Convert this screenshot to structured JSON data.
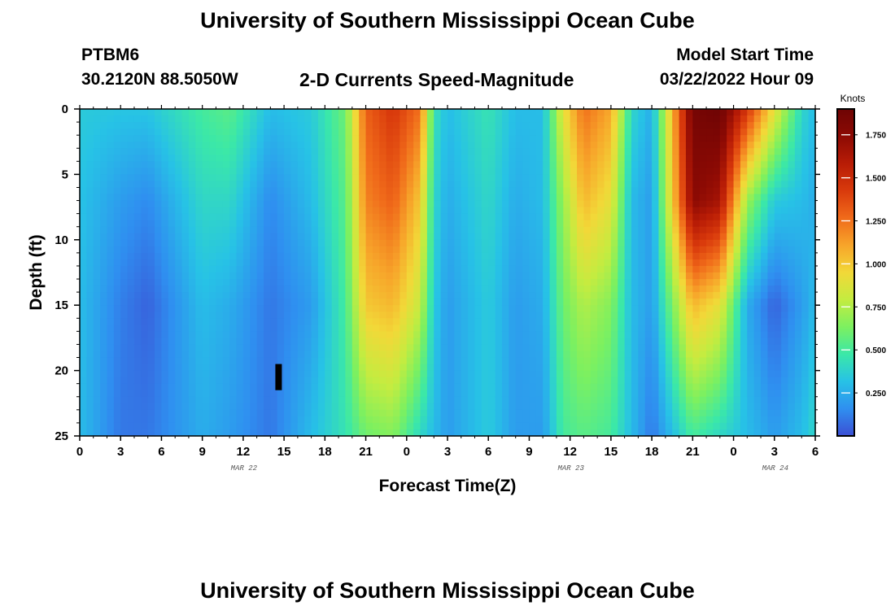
{
  "header": {
    "title": "University of Southern Mississippi Ocean Cube",
    "station": "PTBM6",
    "coords": "30.2120N  88.5050W",
    "subtitle": "2-D Currents Speed-Magnitude",
    "model_start_label": "Model Start Time",
    "model_start_value": "03/22/2022 Hour 09"
  },
  "footer": {
    "title": "University of Southern Mississippi Ocean Cube"
  },
  "chart_data": {
    "type": "heatmap",
    "title": "2-D Currents Speed-Magnitude",
    "xlabel": "Forecast Time(Z)",
    "ylabel": "Depth (ft)",
    "x_tick_labels": [
      "0",
      "3",
      "6",
      "9",
      "12",
      "15",
      "18",
      "21",
      "0",
      "3",
      "6",
      "9",
      "12",
      "15",
      "18",
      "21",
      "0",
      "3",
      "6"
    ],
    "date_labels": [
      {
        "label": "MAR 22",
        "hour": 12
      },
      {
        "label": "MAR 23",
        "hour": 36
      },
      {
        "label": "MAR 24",
        "hour": 51
      }
    ],
    "x_range_hours": [
      0,
      54
    ],
    "y_ticks": [
      0,
      5,
      10,
      15,
      20,
      25
    ],
    "ylim": [
      0,
      25
    ],
    "y_inverted": true,
    "colorbar": {
      "unit": "Knots",
      "ticks": [
        "0.250",
        "0.500",
        "0.750",
        "1.000",
        "1.250",
        "1.500",
        "1.750"
      ],
      "tick_values": [
        0.25,
        0.5,
        0.75,
        1.0,
        1.25,
        1.5,
        1.75
      ],
      "range": [
        0,
        1.9
      ],
      "colors": [
        "#3c4fd4",
        "#2f8ff0",
        "#27c2e6",
        "#3be8a8",
        "#7cf060",
        "#c4ec40",
        "#f2d838",
        "#f7a52a",
        "#f06a1a",
        "#d93a0c",
        "#b81c06",
        "#8c0a04",
        "#6e0404"
      ]
    },
    "speed_profile": {
      "description": "Representative current speed (knots) at depth 0, 7, 15, 25 ft, by forecast hour",
      "hours": [
        0,
        3,
        5,
        9,
        11,
        14,
        17,
        19.5,
        21,
        23,
        25,
        26,
        27,
        30,
        32,
        34,
        35.5,
        37,
        39,
        40.5,
        42,
        45,
        47,
        49,
        51,
        53,
        54
      ],
      "depth_ft": [
        0,
        7,
        15,
        25
      ],
      "speed_knots": [
        [
          0.35,
          0.32,
          0.3,
          0.3
        ],
        [
          0.33,
          0.2,
          0.12,
          0.1
        ],
        [
          0.33,
          0.15,
          0.05,
          0.1
        ],
        [
          0.5,
          0.4,
          0.3,
          0.25
        ],
        [
          0.55,
          0.4,
          0.25,
          0.2
        ],
        [
          0.3,
          0.15,
          0.1,
          0.1
        ],
        [
          0.35,
          0.3,
          0.2,
          0.3
        ],
        [
          0.6,
          0.55,
          0.5,
          0.45
        ],
        [
          1.3,
          1.2,
          1.0,
          0.6
        ],
        [
          1.45,
          1.3,
          1.05,
          0.65
        ],
        [
          1.25,
          1.0,
          0.8,
          0.4
        ],
        [
          0.45,
          0.4,
          0.35,
          0.3
        ],
        [
          0.3,
          0.25,
          0.2,
          0.2
        ],
        [
          0.45,
          0.4,
          0.35,
          0.35
        ],
        [
          0.3,
          0.25,
          0.2,
          0.2
        ],
        [
          0.3,
          0.3,
          0.25,
          0.2
        ],
        [
          0.9,
          0.7,
          0.6,
          0.5
        ],
        [
          1.25,
          1.05,
          0.75,
          0.55
        ],
        [
          1.1,
          0.9,
          0.65,
          0.5
        ],
        [
          0.4,
          0.3,
          0.3,
          0.3
        ],
        [
          0.25,
          0.2,
          0.2,
          0.1
        ],
        [
          1.85,
          1.75,
          1.05,
          0.5
        ],
        [
          1.9,
          1.65,
          0.9,
          0.4
        ],
        [
          1.45,
          0.7,
          0.25,
          0.3
        ],
        [
          0.9,
          0.35,
          0.05,
          0.2
        ],
        [
          0.4,
          0.3,
          0.2,
          0.3
        ],
        [
          0.3,
          0.25,
          0.3,
          0.4
        ]
      ]
    },
    "marker": {
      "hour": 14.6,
      "depth_top_ft": 19.5,
      "depth_bottom_ft": 21.5
    }
  }
}
